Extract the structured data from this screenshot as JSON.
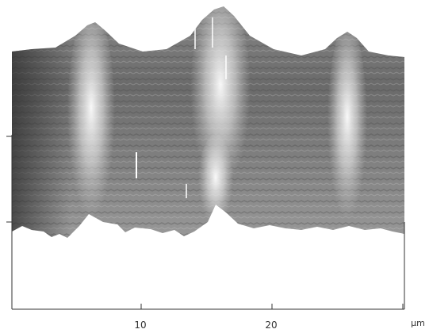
{
  "x_axis": {
    "tick_labels": [
      "10",
      "20"
    ],
    "unit": "µm"
  }
}
